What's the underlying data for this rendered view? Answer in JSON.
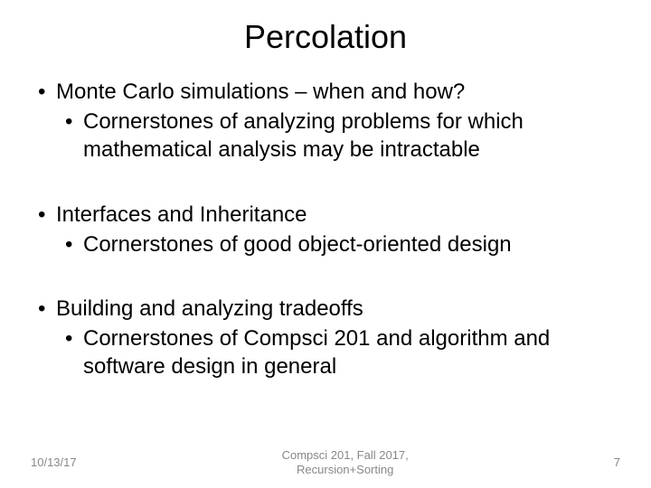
{
  "title": "Percolation",
  "bullets": [
    {
      "main": "Monte Carlo simulations – when and how?",
      "sub": "Cornerstones of analyzing problems for which mathematical analysis may be intractable"
    },
    {
      "main": "Interfaces and Inheritance",
      "sub": "Cornerstones of good object-oriented design"
    },
    {
      "main": "Building and analyzing tradeoffs",
      "sub": "Cornerstones of Compsci 201 and algorithm and software design in general"
    }
  ],
  "footer": {
    "date": "10/13/17",
    "course_line1": "Compsci 201, Fall 2017,",
    "course_line2": "Recursion+Sorting",
    "page": "7"
  },
  "styles": {
    "title_fontsize": 36,
    "body_fontsize": 24,
    "footer_fontsize": 13,
    "text_color": "#000000",
    "footer_color": "#888888",
    "background_color": "#ffffff"
  }
}
